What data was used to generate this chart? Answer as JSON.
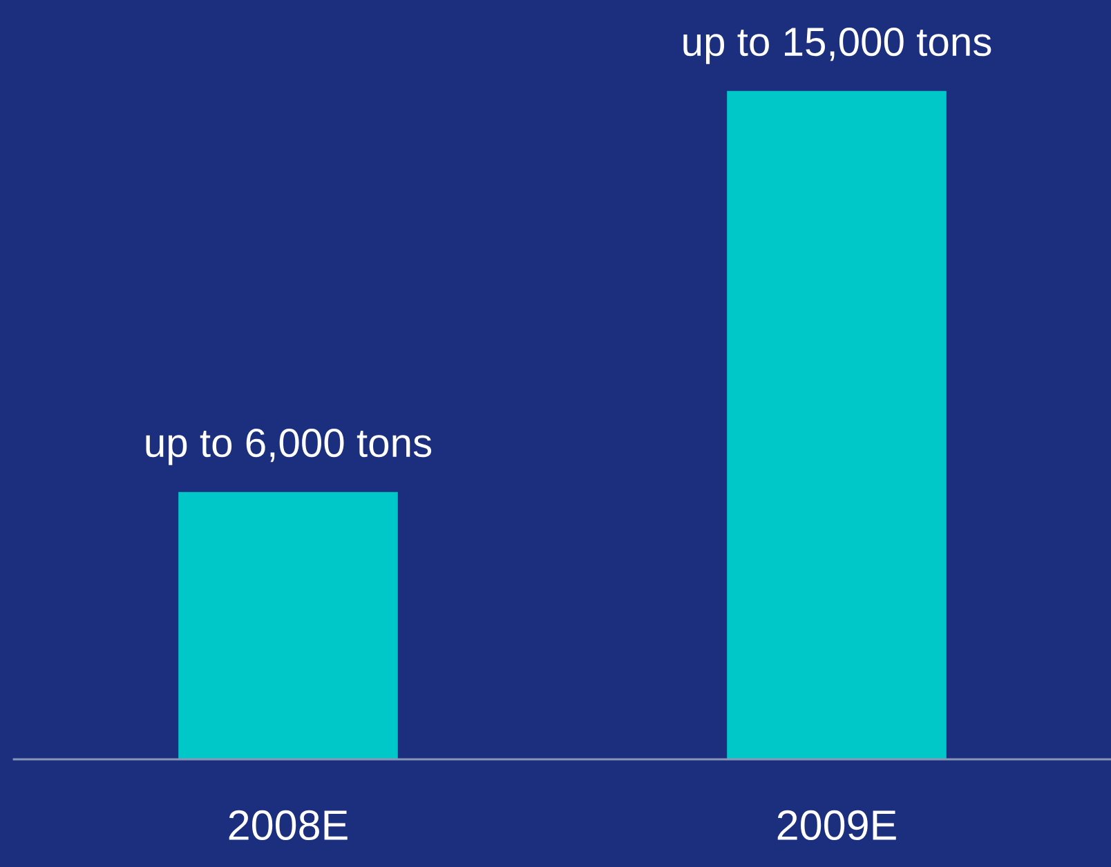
{
  "chart_data": {
    "type": "bar",
    "categories": [
      "2008E",
      "2009E"
    ],
    "values": [
      6000,
      15000
    ],
    "value_labels": [
      "up to 6,000 tons",
      "up to 15,000 tons"
    ],
    "color": "#00c8c8",
    "grid": false,
    "legend": false,
    "tick_labels": "x"
  }
}
